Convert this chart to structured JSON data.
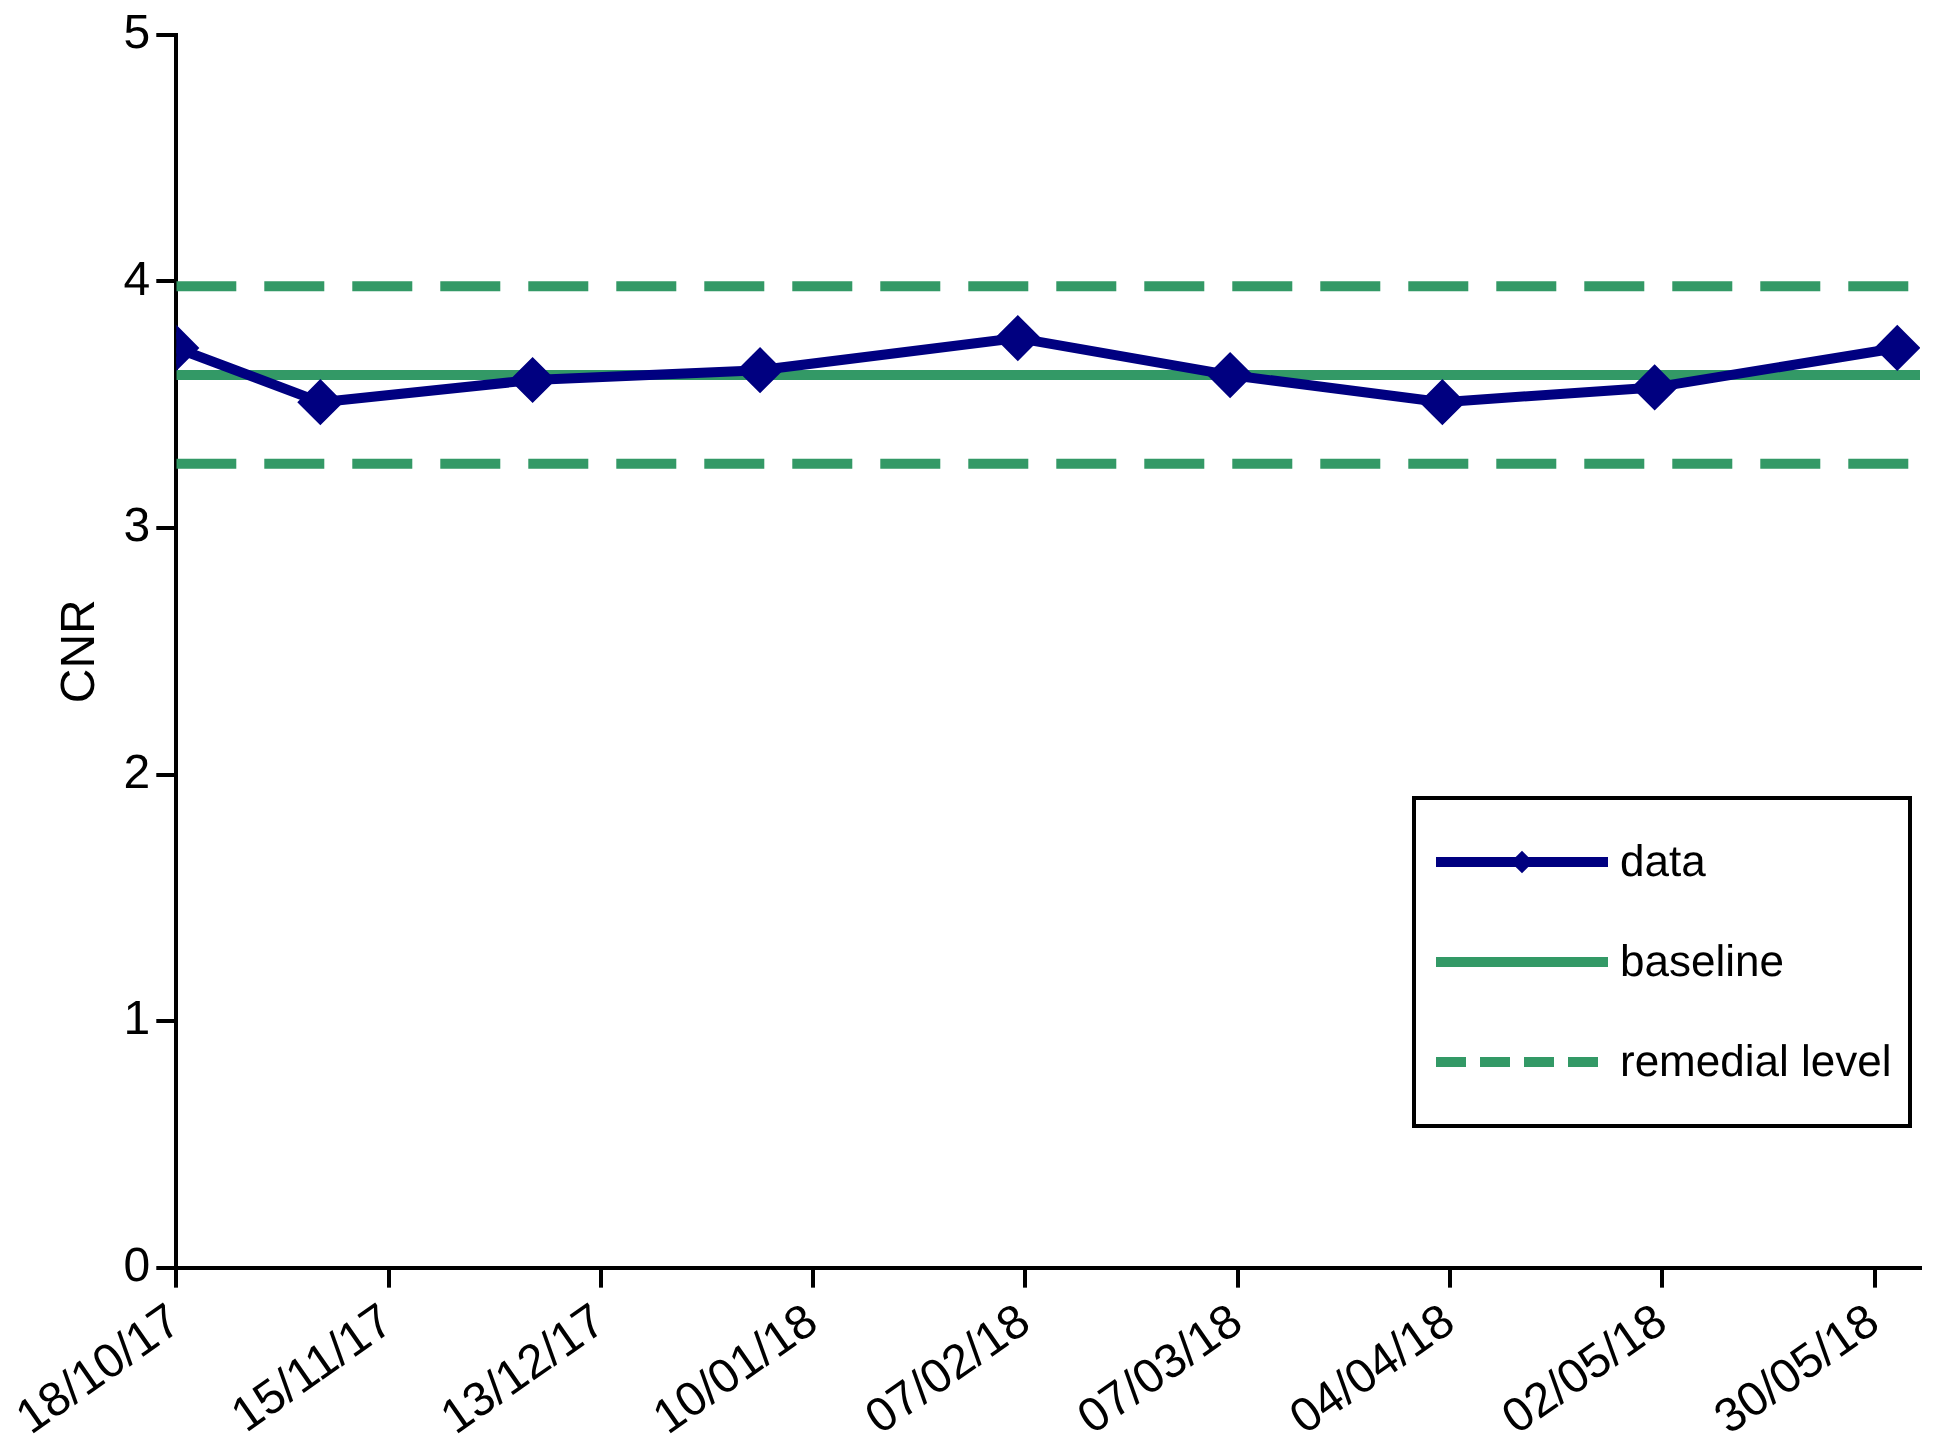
{
  "chart_data": {
    "type": "line",
    "ylabel": "CNR",
    "xlim": [
      "2017-10-18",
      "2018-06-05"
    ],
    "xticks": [
      {
        "value": "2017-10-18",
        "label": "18/10/17"
      },
      {
        "value": "2017-11-15",
        "label": "15/11/17"
      },
      {
        "value": "2017-12-13",
        "label": "13/12/17"
      },
      {
        "value": "2018-01-10",
        "label": "10/01/18"
      },
      {
        "value": "2018-02-07",
        "label": "07/02/18"
      },
      {
        "value": "2018-03-07",
        "label": "07/03/18"
      },
      {
        "value": "2018-04-04",
        "label": "04/04/18"
      },
      {
        "value": "2018-05-02",
        "label": "02/05/18"
      },
      {
        "value": "2018-05-30",
        "label": "30/05/18"
      }
    ],
    "ylim": [
      0,
      5
    ],
    "yticks": [
      0,
      1,
      2,
      3,
      4,
      5
    ],
    "grid": false,
    "legend": "bottom right",
    "series": [
      {
        "name": "data",
        "color": "#000080",
        "marker": "diamond",
        "line_style": "solid",
        "x": [
          "2017-10-18",
          "2017-11-06",
          "2017-12-04",
          "2018-01-03",
          "2018-02-06",
          "2018-03-06",
          "2018-04-03",
          "2018-05-01",
          "2018-06-02"
        ],
        "values": [
          3.73,
          3.51,
          3.6,
          3.64,
          3.77,
          3.62,
          3.51,
          3.57,
          3.73
        ]
      },
      {
        "name": "baseline",
        "color": "#339966",
        "marker": "none",
        "line_style": "solid",
        "x": [
          "2017-10-18",
          "2018-06-05"
        ],
        "values": [
          3.62,
          3.62
        ]
      },
      {
        "name": "remedial level",
        "color": "#339966",
        "marker": "none",
        "line_style": "dashed",
        "x": [
          "2017-10-18",
          "2018-06-05"
        ],
        "values": [
          3.98,
          3.98
        ]
      },
      {
        "color": "#339966",
        "marker": "none",
        "line_style": "dashed",
        "x": [
          "2017-10-18",
          "2018-06-05"
        ],
        "values": [
          3.26,
          3.26
        ]
      }
    ]
  }
}
